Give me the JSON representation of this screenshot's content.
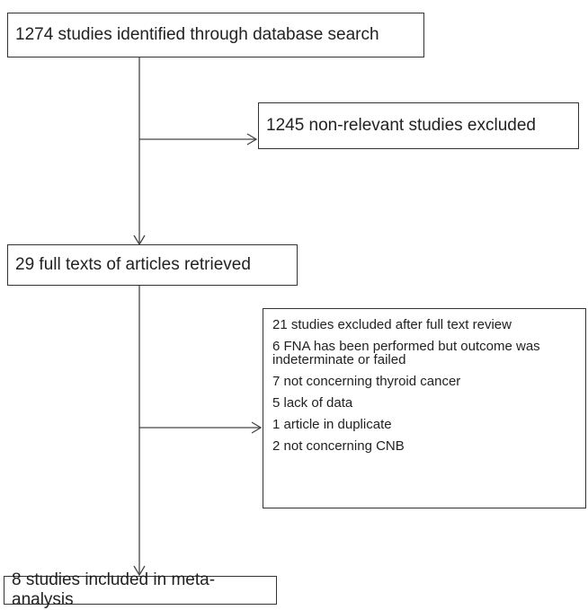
{
  "nodes": [
    {
      "label": "1274 studies identified through database search"
    },
    {
      "label": "1245 non-relevant studies excluded"
    },
    {
      "label": "29 full texts of articles retrieved"
    },
    {
      "label": "8 studies included in meta-analysis"
    }
  ],
  "exclusions": {
    "title": "21 studies excluded after full text review",
    "items": [
      "6 FNA has been performed but outcome was indeterminate or failed",
      "7 not concerning thyroid cancer",
      "5 lack of data",
      "1 article in duplicate",
      "2 not concerning CNB"
    ]
  }
}
